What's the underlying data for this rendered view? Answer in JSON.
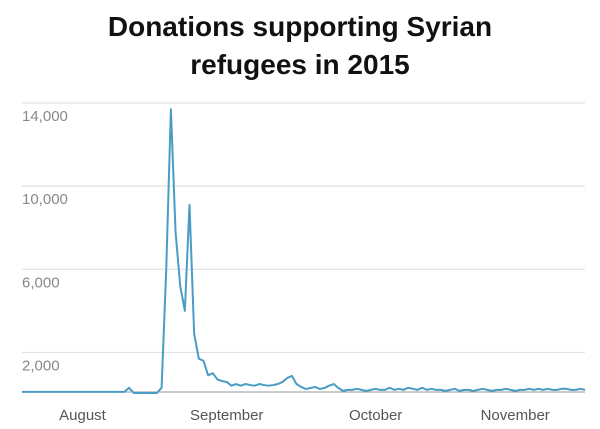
{
  "chart_data": {
    "type": "line",
    "title": "Donations supporting Syrian refugees in 2015",
    "categories": [
      null,
      null,
      null,
      null,
      null,
      null,
      null,
      null,
      null,
      null,
      null,
      null,
      null,
      "August",
      null,
      null,
      null,
      null,
      null,
      null,
      null,
      null,
      null,
      null,
      null,
      null,
      null,
      null,
      null,
      null,
      null,
      null,
      null,
      null,
      null,
      null,
      null,
      null,
      null,
      null,
      null,
      null,
      null,
      null,
      "September",
      null,
      null,
      null,
      null,
      null,
      null,
      null,
      null,
      null,
      null,
      null,
      null,
      null,
      null,
      null,
      null,
      null,
      null,
      null,
      null,
      null,
      null,
      null,
      null,
      null,
      null,
      null,
      null,
      null,
      null,
      null,
      "October",
      null,
      null,
      null,
      null,
      null,
      null,
      null,
      null,
      null,
      null,
      null,
      null,
      null,
      null,
      null,
      null,
      null,
      null,
      null,
      null,
      null,
      null,
      null,
      null,
      null,
      null,
      null,
      null,
      null,
      "November",
      null,
      null,
      null,
      null,
      null,
      null,
      null,
      null,
      null,
      null,
      null,
      null,
      null,
      null,
      null
    ],
    "values": [
      100,
      100,
      100,
      100,
      100,
      100,
      100,
      100,
      100,
      100,
      100,
      100,
      100,
      100,
      100,
      100,
      100,
      100,
      100,
      100,
      100,
      100,
      100,
      300,
      50,
      50,
      50,
      50,
      50,
      50,
      300,
      6000,
      13700,
      7800,
      5200,
      4000,
      9100,
      2900,
      1700,
      1600,
      900,
      1000,
      700,
      620,
      580,
      400,
      480,
      400,
      480,
      430,
      400,
      480,
      430,
      400,
      430,
      480,
      580,
      770,
      870,
      480,
      340,
      240,
      290,
      340,
      240,
      290,
      400,
      480,
      290,
      150,
      200,
      200,
      250,
      200,
      150,
      200,
      250,
      200,
      200,
      300,
      200,
      250,
      200,
      300,
      250,
      200,
      300,
      200,
      250,
      200,
      200,
      150,
      200,
      250,
      150,
      200,
      200,
      150,
      200,
      250,
      200,
      150,
      200,
      200,
      250,
      200,
      150,
      200,
      200,
      250,
      200,
      250,
      200,
      250,
      200,
      200,
      250,
      250,
      200,
      200,
      250,
      200
    ],
    "color": "#4a9cc5",
    "ylim": [
      0,
      14000
    ],
    "yticks": [
      {
        "value": 2000,
        "label": "2,000"
      },
      {
        "value": 6000,
        "label": "6,000"
      },
      {
        "value": 10000,
        "label": "10,000"
      },
      {
        "value": 14000,
        "label": "14,000"
      }
    ],
    "grid": true
  }
}
